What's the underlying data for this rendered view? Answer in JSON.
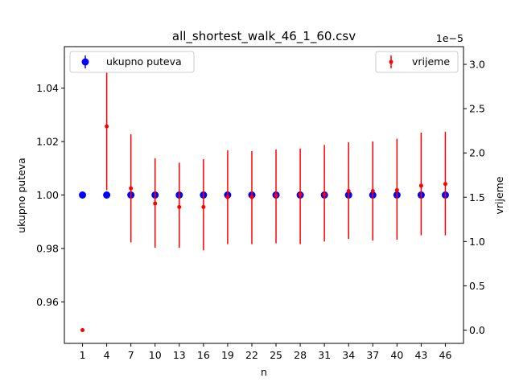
{
  "chart_data": {
    "type": "scatter",
    "title": "all_shortest_walk_46_1_60.csv",
    "xlabel": "n",
    "ylabel_left": "ukupno puteva",
    "ylabel_right": "vrijeme",
    "right_axis_offset_text": "1e−5",
    "x_ticks": [
      "1",
      "4",
      "7",
      "10",
      "13",
      "16",
      "19",
      "22",
      "25",
      "28",
      "31",
      "34",
      "37",
      "40",
      "43",
      "46"
    ],
    "y_left_ticks": [
      "0.96",
      "0.98",
      "1.00",
      "1.02",
      "1.04"
    ],
    "y_right_ticks": [
      "0.0",
      "0.5",
      "1.0",
      "1.5",
      "2.0",
      "2.5",
      "3.0"
    ],
    "y_left_range": [
      0.9445,
      1.0555
    ],
    "y_right_range_scaled": [
      -0.15,
      3.2
    ],
    "legend_left": {
      "label": "ukupno puteva",
      "position": "upper-left"
    },
    "legend_right": {
      "label": "vrijeme",
      "position": "upper-right"
    },
    "colors": {
      "left_series": "#0000ff",
      "right_series": "#ff0000"
    },
    "series": [
      {
        "name": "ukupno puteva",
        "axis": "left",
        "x": [
          1,
          4,
          7,
          10,
          13,
          16,
          19,
          22,
          25,
          28,
          31,
          34,
          37,
          40,
          43,
          46
        ],
        "y": [
          1,
          1,
          1,
          1,
          1,
          1,
          1,
          1,
          1,
          1,
          1,
          1,
          1,
          1,
          1,
          1
        ],
        "yerr": [
          0,
          0,
          0,
          0,
          0,
          0,
          0,
          0,
          0,
          0,
          0,
          0,
          0,
          0,
          0,
          0
        ]
      },
      {
        "name": "vrijeme",
        "axis": "right",
        "scale_note": "values in units of 1e-5",
        "x": [
          1,
          4,
          7,
          10,
          13,
          16,
          19,
          22,
          25,
          28,
          31,
          34,
          37,
          40,
          43,
          46
        ],
        "y": [
          0.0,
          2.3,
          1.6,
          1.43,
          1.39,
          1.39,
          1.5,
          1.5,
          1.52,
          1.53,
          1.53,
          1.57,
          1.57,
          1.58,
          1.63,
          1.65
        ],
        "ylow": [
          0.0,
          1.58,
          0.99,
          0.93,
          0.93,
          0.9,
          0.97,
          0.97,
          0.98,
          0.97,
          1.0,
          1.03,
          1.01,
          1.02,
          1.07,
          1.07
        ],
        "yhigh": [
          0.0,
          3.04,
          2.21,
          1.94,
          1.89,
          1.93,
          2.03,
          2.02,
          2.04,
          2.05,
          2.09,
          2.12,
          2.13,
          2.16,
          2.23,
          2.24
        ]
      }
    ]
  }
}
